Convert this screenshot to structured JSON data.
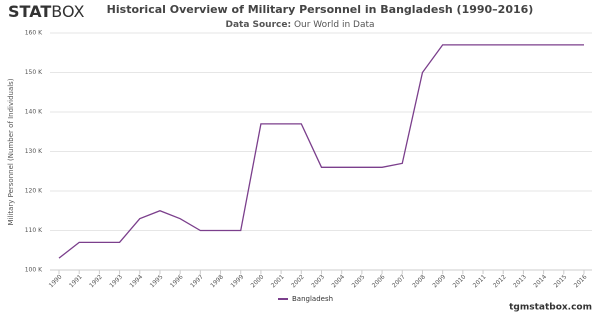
{
  "brand": [
    "STAT",
    "BOX"
  ],
  "footer": "tgmstatbox.com",
  "chart_data": {
    "type": "line",
    "title": "Historical Overview of Military Personnel in Bangladesh (1990–2016)",
    "source_label": "Data Source:",
    "source": "Our World in Data",
    "y_label": "Military Personnel (Number of Individuals)",
    "categories": [
      "1990",
      "1991",
      "1992",
      "1993",
      "1994",
      "1995",
      "1996",
      "1997",
      "1998",
      "1999",
      "2000",
      "2001",
      "2002",
      "2003",
      "2004",
      "2005",
      "2006",
      "2007",
      "2008",
      "2009",
      "2010",
      "2011",
      "2012",
      "2013",
      "2014",
      "2015",
      "2016"
    ],
    "series": [
      {
        "name": "Bangladesh",
        "color": "#7b3f8c",
        "values": [
          103000,
          107000,
          107000,
          107000,
          113000,
          115000,
          113000,
          110000,
          110000,
          110000,
          137000,
          137000,
          137000,
          126000,
          126000,
          126000,
          126000,
          127000,
          150000,
          157000,
          157000,
          157000,
          157000,
          157000,
          157000,
          157000,
          157000
        ]
      }
    ],
    "ylim": [
      100000,
      160000
    ],
    "yticks": [
      {
        "value": 100000,
        "label": "100 K"
      },
      {
        "value": 110000,
        "label": "110 K"
      },
      {
        "value": 120000,
        "label": "120 K"
      },
      {
        "value": 130000,
        "label": "130 K"
      },
      {
        "value": 140000,
        "label": "140 K"
      },
      {
        "value": 150000,
        "label": "150 K"
      },
      {
        "value": 160000,
        "label": "160 K"
      }
    ],
    "grid": true,
    "legend": "bottom"
  }
}
